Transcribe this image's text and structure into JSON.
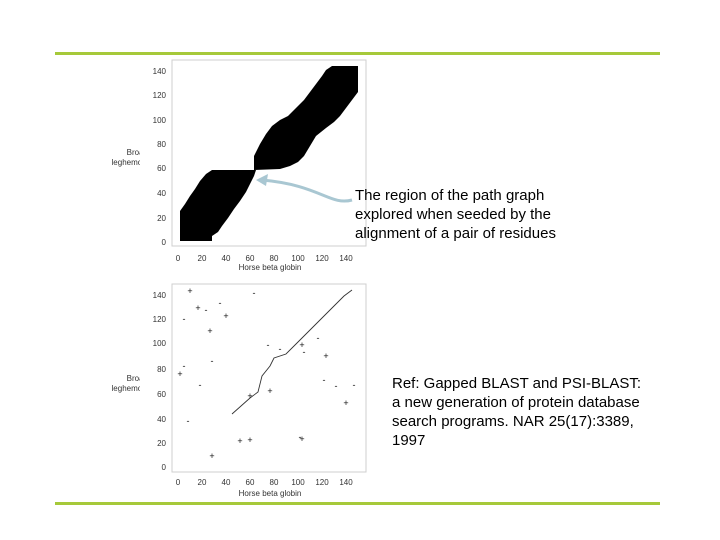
{
  "slide": {
    "caption_region": "The region of the path graph\nexplored when seeded by the\nalignment of a pair of residues",
    "caption_ref": "Ref: Gapped BLAST and PSI-BLAST:\na new generation of protein database\nsearch programs. NAR 25(17):3389,\n1997",
    "accent_color": "#a6c93a",
    "arrow_color": "#a9c7d2"
  },
  "top_plot": {
    "ylabel_line1": "Broad bean",
    "ylabel_line2": "leghemoglobin I",
    "xlabel": "Horse beta globin",
    "xticks": [
      0,
      20,
      40,
      60,
      80,
      100,
      120,
      140
    ],
    "yticks": [
      0,
      20,
      40,
      60,
      80,
      100,
      120,
      140
    ]
  },
  "bottom_plot": {
    "ylabel_line1": "Broad bean",
    "ylabel_line2": "leghemoglobin I",
    "xlabel": "Horse beta globin",
    "xticks": [
      0,
      20,
      40,
      60,
      80,
      100,
      120,
      140
    ],
    "yticks": [
      0,
      20,
      40,
      60,
      80,
      100,
      120,
      140
    ]
  }
}
